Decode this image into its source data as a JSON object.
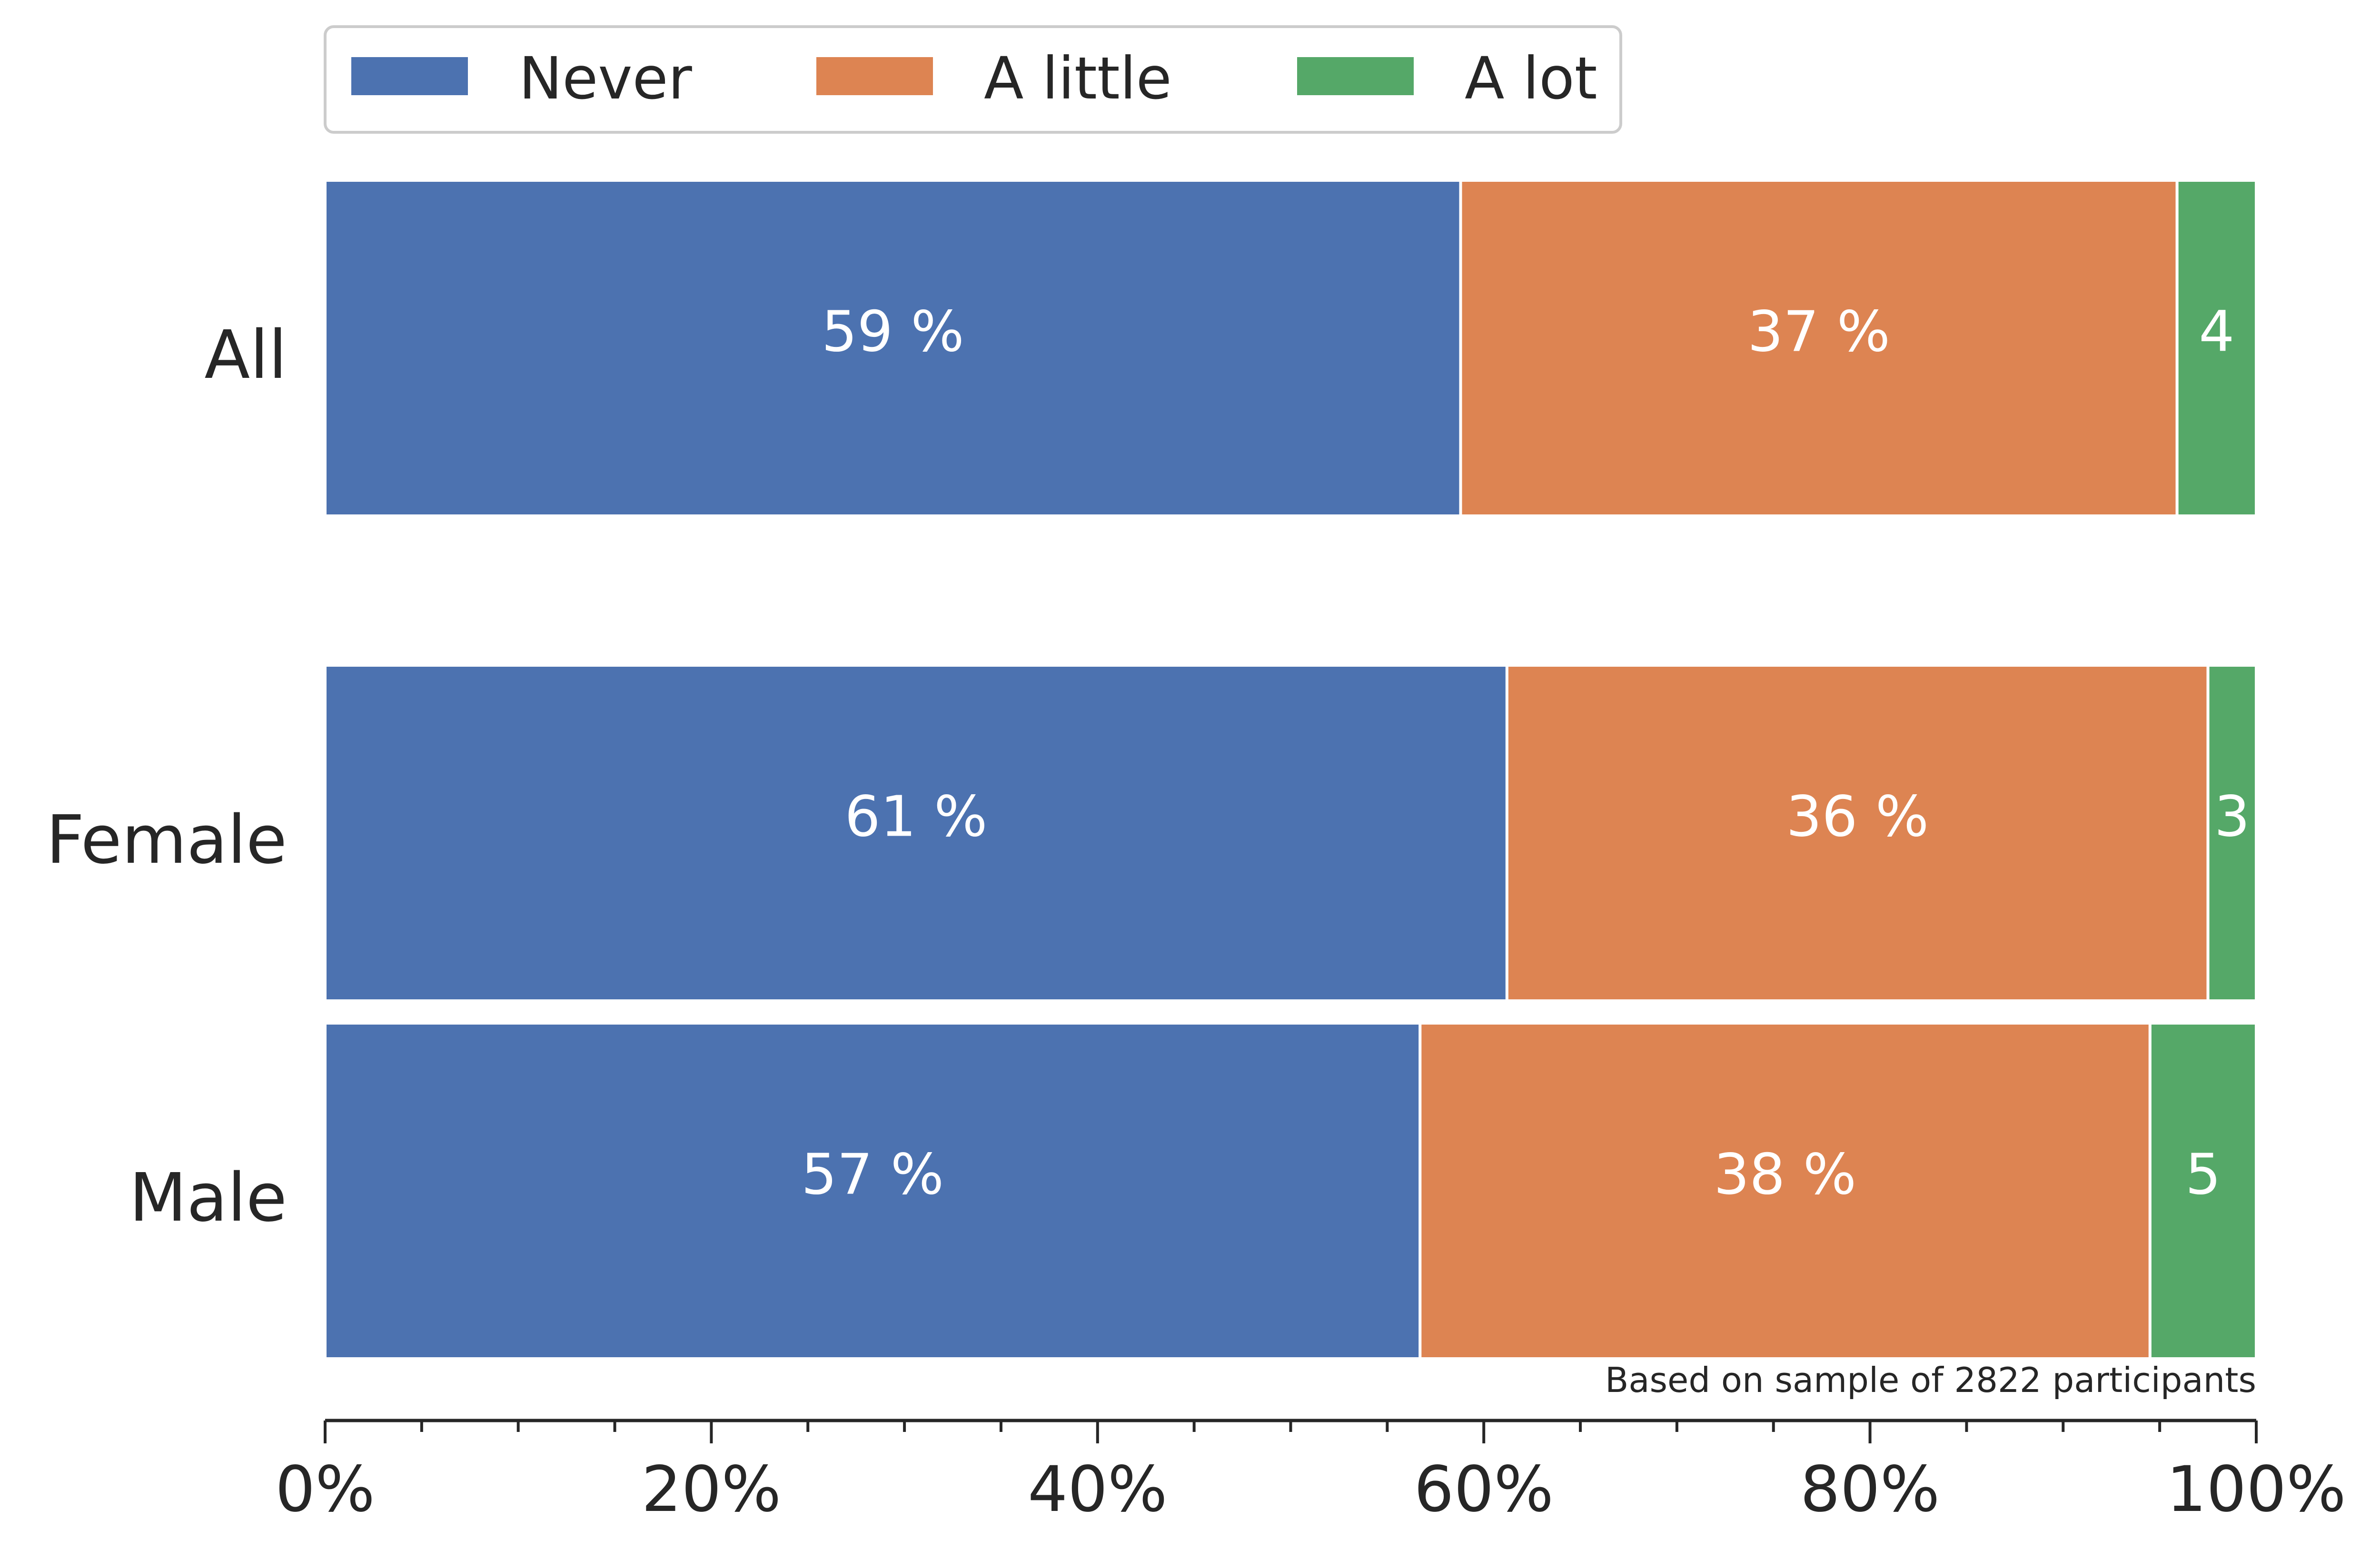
{
  "chart_data": {
    "type": "bar",
    "orientation": "horizontal",
    "stacked": true,
    "categories": [
      "All",
      "Female",
      "Male"
    ],
    "series": [
      {
        "name": "Never",
        "values": [
          58.8,
          61.2,
          56.7
        ],
        "labels": [
          "59 %",
          "61 %",
          "57 %"
        ],
        "color": "#4c72b0"
      },
      {
        "name": "A little",
        "values": [
          37.1,
          36.3,
          37.8
        ],
        "labels": [
          "37 %",
          "36 %",
          "38 %"
        ],
        "color": "#dd8452"
      },
      {
        "name": "A lot",
        "values": [
          4.1,
          2.5,
          5.5
        ],
        "labels": [
          "4",
          "3",
          "5"
        ],
        "color": "#55a868"
      }
    ],
    "xlim": [
      0,
      100
    ],
    "xticks": [
      "0%",
      "20%",
      "40%",
      "60%",
      "80%",
      "100%"
    ],
    "xtick_values": [
      0,
      20,
      40,
      60,
      80,
      100
    ],
    "minor_tick_step": 5,
    "annotation": "Based on sample of 2822 participants",
    "legend_position": "top-left, outside plot",
    "grid": false,
    "colors": {
      "label_text": "#ffffff",
      "axis_text": "#262626",
      "axis_line": "#262626",
      "legend_border": "#cccccc"
    }
  }
}
